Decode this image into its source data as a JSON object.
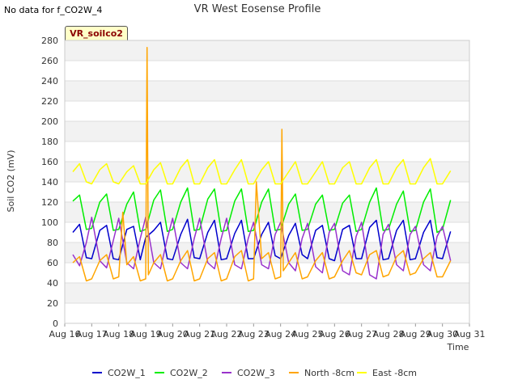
{
  "chart_data": {
    "type": "line",
    "title": "VR West Eosense Profile",
    "note": "No data for f_CO2W_4",
    "badge": "VR_soilco2",
    "xlabel": "Time",
    "ylabel": "Soil CO2 (mV)",
    "ylim": [
      0,
      280
    ],
    "yticks": [
      0,
      20,
      40,
      60,
      80,
      100,
      120,
      140,
      160,
      180,
      200,
      220,
      240,
      260,
      280
    ],
    "xlim": [
      16,
      31
    ],
    "xticks": [
      "Aug 16",
      "Aug 17",
      "Aug 18",
      "Aug 19",
      "Aug 20",
      "Aug 21",
      "Aug 22",
      "Aug 23",
      "Aug 24",
      "Aug 25",
      "Aug 26",
      "Aug 27",
      "Aug 28",
      "Aug 29",
      "Aug 30",
      "Aug 31"
    ],
    "legend_position": "bottom",
    "series": [
      {
        "name": "CO2W_1",
        "color": "#0000cc",
        "x": [
          16.3,
          16.55,
          16.8,
          17.0,
          17.3,
          17.55,
          17.8,
          18.0,
          18.3,
          18.55,
          18.8,
          19.0,
          19.3,
          19.55,
          19.8,
          20.0,
          20.3,
          20.55,
          20.8,
          21.0,
          21.3,
          21.55,
          21.8,
          22.0,
          22.3,
          22.55,
          22.8,
          23.0,
          23.3,
          23.55,
          23.8,
          24.0,
          24.3,
          24.55,
          24.8,
          25.0,
          25.3,
          25.55,
          25.8,
          26.0,
          26.3,
          26.55,
          26.8,
          27.0,
          27.3,
          27.55,
          27.8,
          28.0,
          28.3,
          28.55,
          28.8,
          29.0,
          29.3,
          29.55,
          29.8,
          30.0,
          30.3
        ],
        "y": [
          90,
          98,
          65,
          64,
          92,
          97,
          64,
          63,
          93,
          96,
          63,
          85,
          92,
          100,
          64,
          63,
          88,
          103,
          65,
          64,
          90,
          102,
          63,
          64,
          89,
          102,
          64,
          64,
          88,
          100,
          67,
          64,
          87,
          99,
          68,
          64,
          92,
          97,
          64,
          62,
          93,
          97,
          64,
          64,
          95,
          102,
          63,
          64,
          92,
          102,
          63,
          64,
          90,
          102,
          65,
          64,
          91
        ]
      },
      {
        "name": "CO2W_2",
        "color": "#00ee00",
        "x": [
          16.3,
          16.55,
          16.8,
          17.0,
          17.3,
          17.55,
          17.8,
          18.0,
          18.3,
          18.55,
          18.8,
          19.0,
          19.3,
          19.55,
          19.8,
          20.0,
          20.3,
          20.55,
          20.8,
          21.0,
          21.3,
          21.55,
          21.8,
          22.0,
          22.3,
          22.55,
          22.8,
          23.0,
          23.3,
          23.55,
          23.8,
          24.0,
          24.3,
          24.55,
          24.8,
          25.0,
          25.3,
          25.55,
          25.8,
          26.0,
          26.3,
          26.55,
          26.8,
          27.0,
          27.3,
          27.55,
          27.8,
          28.0,
          28.3,
          28.55,
          28.8,
          29.0,
          29.3,
          29.55,
          29.8,
          30.0,
          30.3
        ],
        "y": [
          121,
          127,
          93,
          94,
          120,
          128,
          92,
          93,
          118,
          130,
          91,
          93,
          122,
          132,
          91,
          93,
          120,
          134,
          92,
          93,
          123,
          133,
          91,
          92,
          121,
          133,
          91,
          92,
          120,
          133,
          92,
          93,
          118,
          128,
          92,
          93,
          118,
          127,
          92,
          93,
          119,
          127,
          91,
          93,
          120,
          134,
          92,
          93,
          118,
          131,
          91,
          92,
          120,
          133,
          90,
          93,
          122
        ]
      },
      {
        "name": "CO2W_3",
        "color": "#9932cc",
        "x": [
          16.3,
          16.55,
          16.8,
          17.0,
          17.3,
          17.55,
          17.8,
          18.0,
          18.3,
          18.55,
          18.8,
          19.0,
          19.3,
          19.55,
          19.8,
          20.0,
          20.3,
          20.55,
          20.8,
          21.0,
          21.3,
          21.55,
          21.8,
          22.0,
          22.3,
          22.55,
          22.8,
          23.0,
          23.3,
          23.55,
          23.8,
          24.0,
          24.3,
          24.55,
          24.8,
          25.0,
          25.3,
          25.55,
          25.8,
          26.0,
          26.3,
          26.55,
          26.8,
          27.0,
          27.3,
          27.55,
          27.8,
          28.0,
          28.3,
          28.55,
          28.8,
          29.0,
          29.3,
          29.55,
          29.8,
          30.0,
          30.3
        ],
        "y": [
          68,
          57,
          80,
          105,
          62,
          55,
          82,
          104,
          60,
          54,
          84,
          105,
          60,
          54,
          84,
          104,
          60,
          54,
          84,
          104,
          60,
          54,
          84,
          104,
          58,
          54,
          84,
          100,
          58,
          54,
          88,
          100,
          60,
          52,
          84,
          99,
          56,
          50,
          90,
          99,
          52,
          48,
          86,
          100,
          48,
          44,
          88,
          98,
          58,
          52,
          88,
          96,
          58,
          52,
          86,
          96,
          62
        ]
      },
      {
        "name": "North -8cm",
        "color": "#ffa500",
        "x": [
          16.3,
          16.55,
          16.8,
          17.0,
          17.3,
          17.55,
          17.8,
          18.0,
          18.15,
          18.3,
          18.55,
          18.8,
          19.0,
          19.05,
          19.1,
          19.3,
          19.55,
          19.8,
          20.0,
          20.3,
          20.55,
          20.8,
          21.0,
          21.3,
          21.55,
          21.8,
          22.0,
          22.3,
          22.55,
          22.8,
          23.0,
          23.1,
          23.3,
          23.55,
          23.8,
          24.0,
          24.05,
          24.1,
          24.3,
          24.55,
          24.8,
          25.0,
          25.3,
          25.55,
          25.8,
          26.0,
          26.3,
          26.55,
          26.8,
          27.0,
          27.3,
          27.55,
          27.8,
          28.0,
          28.3,
          28.55,
          28.8,
          29.0,
          29.3,
          29.55,
          29.8,
          30.0,
          30.3
        ],
        "y": [
          60,
          66,
          42,
          44,
          62,
          68,
          44,
          46,
          110,
          58,
          66,
          42,
          44,
          273,
          48,
          60,
          68,
          42,
          44,
          62,
          72,
          42,
          44,
          64,
          70,
          42,
          44,
          66,
          72,
          42,
          44,
          140,
          64,
          70,
          44,
          46,
          192,
          52,
          60,
          70,
          44,
          46,
          62,
          70,
          44,
          46,
          62,
          72,
          50,
          48,
          68,
          72,
          46,
          48,
          66,
          72,
          48,
          50,
          64,
          70,
          46,
          46,
          62
        ]
      },
      {
        "name": "East -8cm",
        "color": "#ffff00",
        "x": [
          16.3,
          16.55,
          16.8,
          17.0,
          17.3,
          17.55,
          17.8,
          18.0,
          18.3,
          18.55,
          18.8,
          19.0,
          19.3,
          19.55,
          19.8,
          20.0,
          20.3,
          20.55,
          20.8,
          21.0,
          21.3,
          21.55,
          21.8,
          22.0,
          22.3,
          22.55,
          22.8,
          23.0,
          23.3,
          23.55,
          23.8,
          24.0,
          24.3,
          24.55,
          24.8,
          25.0,
          25.3,
          25.55,
          25.8,
          26.0,
          26.3,
          26.55,
          26.8,
          27.0,
          27.3,
          27.55,
          27.8,
          28.0,
          28.3,
          28.55,
          28.8,
          29.0,
          29.3,
          29.55,
          29.8,
          30.0,
          30.3
        ],
        "y": [
          150,
          158,
          140,
          138,
          152,
          158,
          140,
          138,
          150,
          156,
          138,
          138,
          152,
          159,
          138,
          138,
          154,
          162,
          138,
          138,
          154,
          162,
          138,
          138,
          152,
          162,
          138,
          138,
          152,
          160,
          138,
          138,
          150,
          160,
          138,
          138,
          150,
          160,
          138,
          138,
          154,
          160,
          138,
          138,
          154,
          162,
          138,
          138,
          154,
          162,
          138,
          138,
          154,
          163,
          138,
          138,
          151
        ]
      }
    ]
  }
}
